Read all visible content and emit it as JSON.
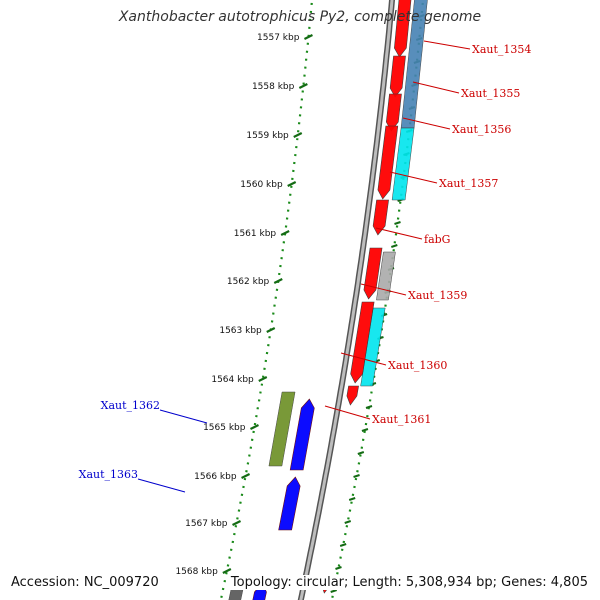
{
  "title": "Xanthobacter autotrophicus Py2, complete genome",
  "footer": {
    "accession": "Accession: NC_009720",
    "info": "Topology: circular; Length: 5,308,934 bp; Genes: 4,805"
  },
  "colors": {
    "forward_strand_gene": "#ff0000",
    "reverse_strand_gene": "#0000ff",
    "cyan_feature": "#00e5ee",
    "steelblue_feature": "#4682b4",
    "olive_feature": "#6b8e23",
    "gray_feature": "#aaaaaa",
    "backbone": "#888888",
    "tick_marks": "#1a8a1a"
  },
  "ticks": [
    {
      "label": "1557 kbp"
    },
    {
      "label": "1558 kbp"
    },
    {
      "label": "1559 kbp"
    },
    {
      "label": "1560 kbp"
    },
    {
      "label": "1561 kbp"
    },
    {
      "label": "1562 kbp"
    },
    {
      "label": "1563 kbp"
    },
    {
      "label": "1564 kbp"
    },
    {
      "label": "1565 kbp"
    },
    {
      "label": "1566 kbp"
    },
    {
      "label": "1567 kbp"
    },
    {
      "label": "1568 kbp"
    }
  ],
  "genes_right": [
    {
      "label": "Xaut_1354",
      "color": "#cc0000"
    },
    {
      "label": "Xaut_1355",
      "color": "#cc0000"
    },
    {
      "label": "Xaut_1356",
      "color": "#cc0000"
    },
    {
      "label": "Xaut_1357",
      "color": "#cc0000"
    },
    {
      "label": "fabG",
      "color": "#cc0000"
    },
    {
      "label": "Xaut_1359",
      "color": "#cc0000"
    },
    {
      "label": "Xaut_1360",
      "color": "#cc0000"
    },
    {
      "label": "Xaut_1361",
      "color": "#cc0000"
    }
  ],
  "genes_left": [
    {
      "label": "Xaut_1362",
      "color": "#0000cc"
    },
    {
      "label": "Xaut_1363",
      "color": "#0000cc"
    }
  ]
}
